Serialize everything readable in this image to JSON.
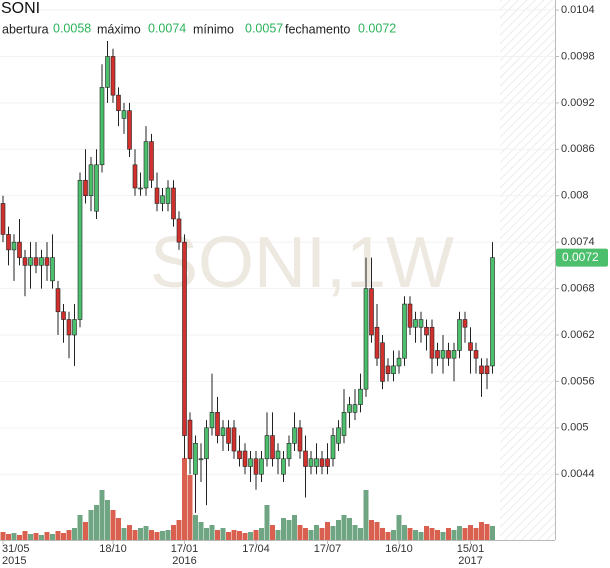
{
  "chart_data": {
    "type": "candlestick",
    "title": "SONI",
    "watermark": "SONI,1W",
    "ohlc_labels": [
      "abertura",
      "máximo",
      "mínimo",
      "fechamento"
    ],
    "categories": [
      "31/05",
      null,
      null,
      null,
      null,
      null,
      null,
      null,
      null,
      null,
      null,
      null,
      null,
      null,
      null,
      null,
      null,
      null,
      null,
      null,
      "18/10",
      null,
      null,
      null,
      null,
      null,
      null,
      null,
      null,
      null,
      null,
      null,
      null,
      "17/01",
      null,
      null,
      null,
      null,
      null,
      null,
      null,
      null,
      null,
      null,
      null,
      null,
      "17/04",
      null,
      null,
      null,
      null,
      null,
      null,
      null,
      null,
      null,
      null,
      null,
      null,
      "17/07",
      null,
      null,
      null,
      null,
      null,
      null,
      null,
      null,
      null,
      null,
      null,
      null,
      "16/10",
      null,
      null,
      null,
      null,
      null,
      null,
      null,
      null,
      null,
      null,
      null,
      null,
      "15/01",
      null,
      null,
      null,
      null
    ],
    "category_years": [
      "2015",
      null,
      null,
      null,
      null,
      null,
      null,
      null,
      null,
      null,
      null,
      null,
      null,
      null,
      null,
      null,
      null,
      null,
      null,
      null,
      null,
      null,
      null,
      null,
      null,
      null,
      null,
      null,
      null,
      null,
      null,
      null,
      null,
      "2016",
      null,
      null,
      null,
      null,
      null,
      null,
      null,
      null,
      null,
      null,
      null,
      null,
      null,
      null,
      null,
      null,
      null,
      null,
      null,
      null,
      null,
      null,
      null,
      null,
      null,
      null,
      null,
      null,
      null,
      null,
      null,
      null,
      null,
      null,
      null,
      null,
      null,
      null,
      null,
      null,
      null,
      null,
      null,
      null,
      null,
      null,
      null,
      null,
      null,
      null,
      null,
      "2017",
      null,
      null,
      null,
      null
    ],
    "open": [
      0.0079,
      0.0075,
      0.0073,
      0.0074,
      0.0072,
      0.0071,
      0.0072,
      0.0071,
      0.0072,
      0.0069,
      0.0068,
      0.0065,
      0.0064,
      0.0062,
      0.0064,
      0.0082,
      0.008,
      0.0078,
      0.0084,
      0.0094,
      0.0098,
      0.0093,
      0.009,
      0.0091,
      0.0084,
      0.0081,
      0.0081,
      0.0087,
      0.0081,
      0.0079,
      0.0079,
      0.0081,
      0.0077,
      0.0074,
      0.0051,
      0.0044,
      0.0046,
      0.0046,
      0.005,
      0.0052,
      0.0049,
      0.005,
      0.005,
      0.0047,
      0.0047,
      0.0045,
      0.0046,
      0.0044,
      0.0046,
      0.0049,
      0.0046,
      0.0044,
      0.0046,
      0.0048,
      0.005,
      0.0047,
      0.0045,
      0.0045,
      0.0046,
      0.0046,
      0.0046,
      0.0048,
      0.0049,
      0.0052,
      0.0052,
      0.0053,
      0.0055,
      0.0068,
      0.0063,
      0.0061,
      0.0058,
      0.0057,
      0.0058,
      0.0059,
      0.0066,
      0.0063,
      0.0063,
      0.0063,
      0.0063,
      0.006,
      0.0059,
      0.006,
      0.0059,
      0.006,
      0.0064,
      0.0061,
      0.006,
      0.0058,
      0.0058,
      0.0058
    ],
    "high": [
      0.008,
      0.0076,
      0.0075,
      0.0077,
      0.0073,
      0.0074,
      0.0074,
      0.0073,
      0.0074,
      0.0075,
      0.0069,
      0.0066,
      0.0065,
      0.0066,
      0.0083,
      0.0086,
      0.0085,
      0.0086,
      0.0097,
      0.01,
      0.0099,
      0.0094,
      0.0092,
      0.0092,
      0.0086,
      0.0083,
      0.0089,
      0.0088,
      0.0083,
      0.0081,
      0.0082,
      0.0082,
      0.0078,
      0.0075,
      0.0052,
      0.0049,
      0.0048,
      0.0051,
      0.0057,
      0.0054,
      0.0051,
      0.0051,
      0.0051,
      0.0049,
      0.0048,
      0.0047,
      0.0047,
      0.0047,
      0.0052,
      0.0052,
      0.0048,
      0.0047,
      0.0049,
      0.0052,
      0.0051,
      0.0049,
      0.0047,
      0.0048,
      0.0047,
      0.0048,
      0.005,
      0.0051,
      0.0055,
      0.0054,
      0.0055,
      0.0057,
      0.0072,
      0.0072,
      0.0066,
      0.0062,
      0.0059,
      0.006,
      0.006,
      0.0067,
      0.0067,
      0.0065,
      0.0065,
      0.0064,
      0.0064,
      0.0061,
      0.0062,
      0.0061,
      0.0061,
      0.0065,
      0.0065,
      0.0063,
      0.0061,
      0.0059,
      0.0059,
      0.0074
    ],
    "low": [
      0.0074,
      0.0071,
      0.0069,
      0.0071,
      0.0067,
      0.0068,
      0.007,
      0.0068,
      0.0069,
      0.0068,
      0.0062,
      0.0061,
      0.0059,
      0.0058,
      0.0063,
      0.0079,
      0.0078,
      0.0077,
      0.0083,
      0.0092,
      0.0092,
      0.0089,
      0.0088,
      0.0085,
      0.008,
      0.008,
      0.008,
      0.0081,
      0.0078,
      0.0078,
      0.0078,
      0.0076,
      0.0073,
      0.0046,
      0.0044,
      0.0039,
      0.0043,
      0.004,
      0.0049,
      0.0048,
      0.0047,
      0.0047,
      0.0046,
      0.0045,
      0.0044,
      0.0043,
      0.0042,
      0.0043,
      0.0045,
      0.0045,
      0.0044,
      0.0043,
      0.0045,
      0.0047,
      0.0046,
      0.0041,
      0.0044,
      0.0044,
      0.0044,
      0.0044,
      0.0045,
      0.0047,
      0.0048,
      0.005,
      0.0051,
      0.0052,
      0.0054,
      0.0061,
      0.0058,
      0.0055,
      0.0056,
      0.0056,
      0.0057,
      0.0058,
      0.0062,
      0.0061,
      0.0061,
      0.006,
      0.0057,
      0.0058,
      0.0057,
      0.0058,
      0.0056,
      0.0059,
      0.0061,
      0.0057,
      0.0057,
      0.0054,
      0.0055,
      0.0057
    ],
    "close": [
      0.0075,
      0.0073,
      0.0074,
      0.0072,
      0.0071,
      0.0072,
      0.0071,
      0.0072,
      0.0071,
      0.0072,
      0.0065,
      0.0064,
      0.0062,
      0.0064,
      0.0082,
      0.008,
      0.0084,
      0.0084,
      0.0094,
      0.0098,
      0.0093,
      0.0091,
      0.0091,
      0.0086,
      0.0081,
      0.0081,
      0.0087,
      0.0082,
      0.0079,
      0.008,
      0.0081,
      0.0077,
      0.0074,
      0.0049,
      0.0046,
      0.0048,
      0.0046,
      0.005,
      0.0052,
      0.0049,
      0.005,
      0.0048,
      0.0047,
      0.0046,
      0.0045,
      0.0046,
      0.0044,
      0.0046,
      0.0049,
      0.0046,
      0.0047,
      0.0046,
      0.0048,
      0.005,
      0.0047,
      0.0045,
      0.0046,
      0.0046,
      0.0045,
      0.0045,
      0.0049,
      0.005,
      0.0052,
      0.0053,
      0.0053,
      0.0055,
      0.0068,
      0.0062,
      0.0059,
      0.0056,
      0.0057,
      0.0058,
      0.0059,
      0.0066,
      0.0063,
      0.0064,
      0.0064,
      0.0062,
      0.0059,
      0.0059,
      0.006,
      0.0059,
      0.006,
      0.0064,
      0.0063,
      0.006,
      0.0059,
      0.0057,
      0.0057,
      0.0072
    ],
    "volume": [
      8,
      6,
      7,
      5,
      9,
      6,
      7,
      5,
      8,
      6,
      9,
      7,
      10,
      12,
      25,
      18,
      30,
      35,
      50,
      40,
      30,
      22,
      12,
      15,
      10,
      12,
      14,
      10,
      8,
      9,
      10,
      15,
      20,
      82,
      65,
      25,
      18,
      12,
      15,
      10,
      12,
      8,
      10,
      9,
      7,
      8,
      10,
      12,
      35,
      15,
      10,
      22,
      20,
      25,
      15,
      12,
      10,
      15,
      12,
      18,
      14,
      20,
      25,
      22,
      15,
      12,
      50,
      20,
      18,
      12,
      8,
      10,
      25,
      15,
      12,
      10,
      8,
      14,
      12,
      10,
      8,
      12,
      10,
      14,
      12,
      15,
      12,
      18,
      16,
      14
    ],
    "up_color": "#4bbf6b",
    "down_color": "#d0312d",
    "up_volume_color": "#6fa582",
    "down_volume_color": "#d9604f",
    "ylim": [
      0.00355,
      0.01053
    ],
    "yticks": [
      0.0104,
      0.0098,
      0.0092,
      0.0086,
      0.008,
      0.0074,
      0.0068,
      0.0062,
      0.0056,
      0.005,
      0.0044
    ],
    "grid": true
  }
}
